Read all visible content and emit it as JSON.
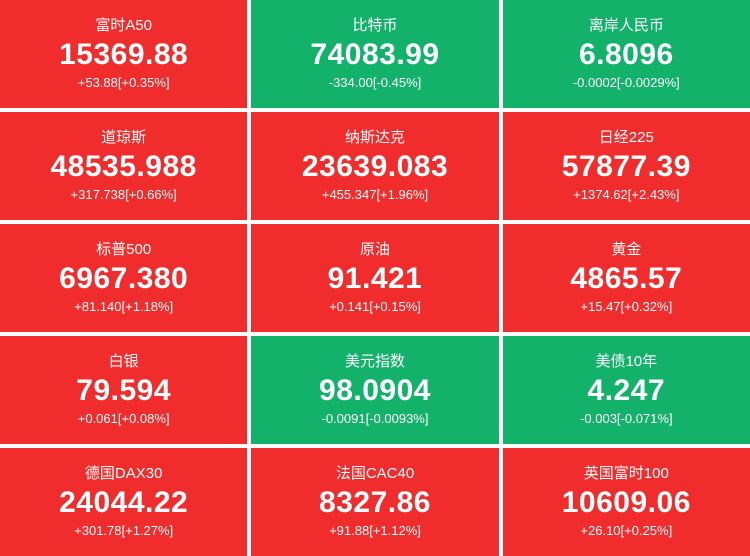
{
  "colors": {
    "up": "#f12c2c",
    "down": "#12b26b",
    "text": "#ffffff",
    "background": "#ffffff"
  },
  "tiles": [
    {
      "name": "富时A50",
      "price": "15369.88",
      "change": "+53.88[+0.35%]",
      "direction": "up"
    },
    {
      "name": "比特币",
      "price": "74083.99",
      "change": "-334.00[-0.45%]",
      "direction": "down"
    },
    {
      "name": "离岸人民币",
      "price": "6.8096",
      "change": "-0.0002[-0.0029%]",
      "direction": "down"
    },
    {
      "name": "道琼斯",
      "price": "48535.988",
      "change": "+317.738[+0.66%]",
      "direction": "up"
    },
    {
      "name": "纳斯达克",
      "price": "23639.083",
      "change": "+455.347[+1.96%]",
      "direction": "up"
    },
    {
      "name": "日经225",
      "price": "57877.39",
      "change": "+1374.62[+2.43%]",
      "direction": "up"
    },
    {
      "name": "标普500",
      "price": "6967.380",
      "change": "+81.140[+1.18%]",
      "direction": "up"
    },
    {
      "name": "原油",
      "price": "91.421",
      "change": "+0.141[+0.15%]",
      "direction": "up"
    },
    {
      "name": "黄金",
      "price": "4865.57",
      "change": "+15.47[+0.32%]",
      "direction": "up"
    },
    {
      "name": "白银",
      "price": "79.594",
      "change": "+0.061[+0.08%]",
      "direction": "up"
    },
    {
      "name": "美元指数",
      "price": "98.0904",
      "change": "-0.0091[-0.0093%]",
      "direction": "down"
    },
    {
      "name": "美债10年",
      "price": "4.247",
      "change": "-0.003[-0.071%]",
      "direction": "down"
    },
    {
      "name": "德国DAX30",
      "price": "24044.22",
      "change": "+301.78[+1.27%]",
      "direction": "up"
    },
    {
      "name": "法国CAC40",
      "price": "8327.86",
      "change": "+91.88[+1.12%]",
      "direction": "up"
    },
    {
      "name": "英国富时100",
      "price": "10609.06",
      "change": "+26.10[+0.25%]",
      "direction": "up"
    }
  ]
}
